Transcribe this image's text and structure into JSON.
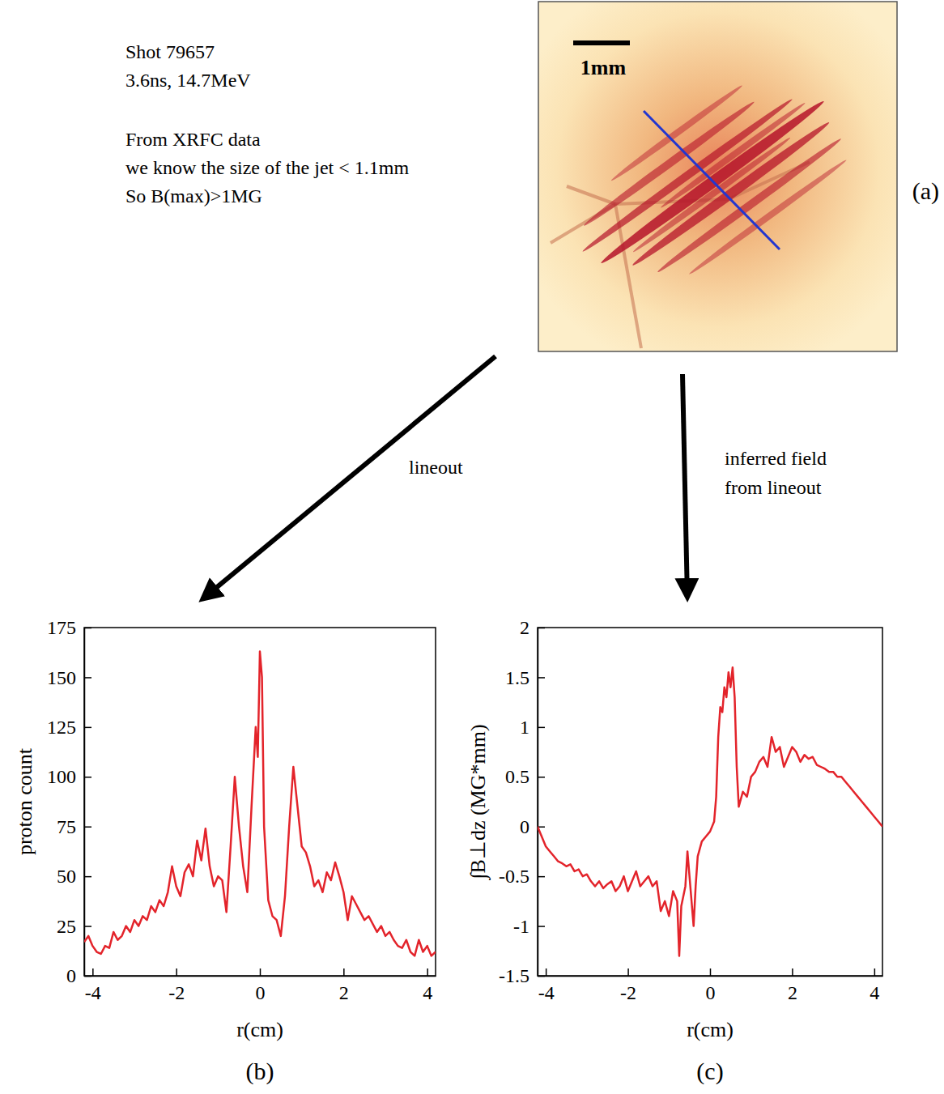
{
  "chart_data": [
    {
      "type": "line",
      "panel": "(b)",
      "x_label": "r(cm)",
      "y_label": "proton count",
      "color": "#e3242b",
      "xlim": [
        -4.2,
        4.2
      ],
      "xticks": [
        -4,
        -2,
        0,
        2,
        4
      ],
      "ylim": [
        0,
        175
      ],
      "yticks": [
        0,
        25,
        50,
        75,
        100,
        125,
        150,
        175
      ],
      "x": [
        -4.2,
        -4.1,
        -4.0,
        -3.9,
        -3.8,
        -3.7,
        -3.6,
        -3.5,
        -3.4,
        -3.3,
        -3.2,
        -3.1,
        -3.0,
        -2.9,
        -2.8,
        -2.7,
        -2.6,
        -2.5,
        -2.4,
        -2.3,
        -2.2,
        -2.1,
        -2.0,
        -1.9,
        -1.8,
        -1.7,
        -1.6,
        -1.5,
        -1.4,
        -1.3,
        -1.2,
        -1.1,
        -1.0,
        -0.9,
        -0.8,
        -0.7,
        -0.6,
        -0.5,
        -0.4,
        -0.3,
        -0.2,
        -0.1,
        -0.05,
        0,
        0.05,
        0.1,
        0.2,
        0.3,
        0.4,
        0.5,
        0.6,
        0.7,
        0.8,
        0.9,
        1.0,
        1.1,
        1.2,
        1.3,
        1.4,
        1.5,
        1.6,
        1.7,
        1.8,
        1.9,
        2.0,
        2.1,
        2.2,
        2.3,
        2.4,
        2.5,
        2.6,
        2.7,
        2.8,
        2.9,
        3.0,
        3.1,
        3.2,
        3.3,
        3.4,
        3.5,
        3.6,
        3.7,
        3.8,
        3.9,
        4.0,
        4.1,
        4.2
      ],
      "values": [
        17,
        20,
        15,
        12,
        11,
        15,
        14,
        22,
        18,
        20,
        25,
        22,
        28,
        25,
        30,
        28,
        35,
        32,
        38,
        35,
        42,
        55,
        45,
        40,
        52,
        56,
        50,
        68,
        58,
        74,
        55,
        45,
        50,
        48,
        32,
        65,
        100,
        75,
        55,
        42,
        85,
        125,
        110,
        163,
        150,
        75,
        38,
        30,
        28,
        20,
        40,
        75,
        105,
        85,
        65,
        62,
        55,
        45,
        48,
        42,
        52,
        48,
        57,
        50,
        42,
        28,
        40,
        36,
        32,
        28,
        30,
        26,
        22,
        25,
        20,
        22,
        18,
        15,
        14,
        18,
        12,
        10,
        18,
        12,
        15,
        10,
        12
      ]
    },
    {
      "type": "line",
      "panel": "(c)",
      "x_label": "r(cm)",
      "y_label": "∫B⊥dz (MG*mm)",
      "color": "#e3242b",
      "xlim": [
        -4.2,
        4.2
      ],
      "xticks": [
        -4,
        -2,
        0,
        2,
        4
      ],
      "ylim": [
        -1.5,
        2
      ],
      "yticks": [
        -1.5,
        -1,
        -0.5,
        0,
        0.5,
        1,
        1.5,
        2
      ],
      "x": [
        -4.2,
        -4.1,
        -4.0,
        -3.9,
        -3.8,
        -3.7,
        -3.6,
        -3.5,
        -3.4,
        -3.3,
        -3.2,
        -3.1,
        -3.0,
        -2.9,
        -2.8,
        -2.7,
        -2.6,
        -2.5,
        -2.4,
        -2.3,
        -2.2,
        -2.1,
        -2.0,
        -1.9,
        -1.8,
        -1.7,
        -1.6,
        -1.5,
        -1.4,
        -1.3,
        -1.2,
        -1.1,
        -1.0,
        -0.9,
        -0.8,
        -0.75,
        -0.7,
        -0.6,
        -0.55,
        -0.5,
        -0.4,
        -0.35,
        -0.3,
        -0.2,
        -0.1,
        0,
        0.1,
        0.15,
        0.2,
        0.25,
        0.3,
        0.35,
        0.4,
        0.45,
        0.5,
        0.55,
        0.6,
        0.65,
        0.7,
        0.8,
        0.9,
        1.0,
        1.1,
        1.2,
        1.3,
        1.4,
        1.5,
        1.6,
        1.7,
        1.8,
        1.9,
        2.0,
        2.1,
        2.2,
        2.3,
        2.4,
        2.5,
        2.6,
        2.7,
        2.8,
        2.9,
        3.0,
        3.1,
        3.2,
        3.3,
        3.4,
        3.5,
        3.6,
        3.7,
        3.8,
        3.9,
        4.0,
        4.1,
        4.2
      ],
      "values": [
        0,
        -0.1,
        -0.2,
        -0.25,
        -0.3,
        -0.35,
        -0.37,
        -0.4,
        -0.38,
        -0.45,
        -0.43,
        -0.5,
        -0.48,
        -0.55,
        -0.6,
        -0.55,
        -0.62,
        -0.58,
        -0.55,
        -0.65,
        -0.6,
        -0.5,
        -0.65,
        -0.55,
        -0.45,
        -0.6,
        -0.55,
        -0.5,
        -0.6,
        -0.55,
        -0.85,
        -0.75,
        -0.9,
        -0.65,
        -0.75,
        -1.3,
        -0.8,
        -0.6,
        -0.25,
        -0.5,
        -1.0,
        -0.6,
        -0.3,
        -0.15,
        -0.1,
        -0.05,
        0.05,
        0.3,
        0.9,
        1.2,
        1.15,
        1.4,
        1.3,
        1.55,
        1.4,
        1.6,
        1.3,
        0.6,
        0.2,
        0.35,
        0.3,
        0.5,
        0.55,
        0.65,
        0.7,
        0.6,
        0.9,
        0.75,
        0.8,
        0.6,
        0.7,
        0.8,
        0.75,
        0.65,
        0.72,
        0.68,
        0.7,
        0.62,
        0.6,
        0.58,
        0.55,
        0.55,
        0.5,
        0.5,
        0.45,
        0.4,
        0.35,
        0.3,
        0.25,
        0.2,
        0.15,
        0.1,
        0.05,
        0
      ]
    }
  ],
  "figure": {
    "notes": [
      "Shot 79657",
      "3.6ns, 14.7MeV",
      "From XRFC data",
      "we know the size of the jet < 1.1mm",
      "So B(max)>1MG"
    ],
    "image_label": "(a)",
    "scale_bar": "1mm",
    "arrow_left": [
      "lineout"
    ],
    "arrow_right": [
      "inferred field",
      "from lineout"
    ]
  }
}
